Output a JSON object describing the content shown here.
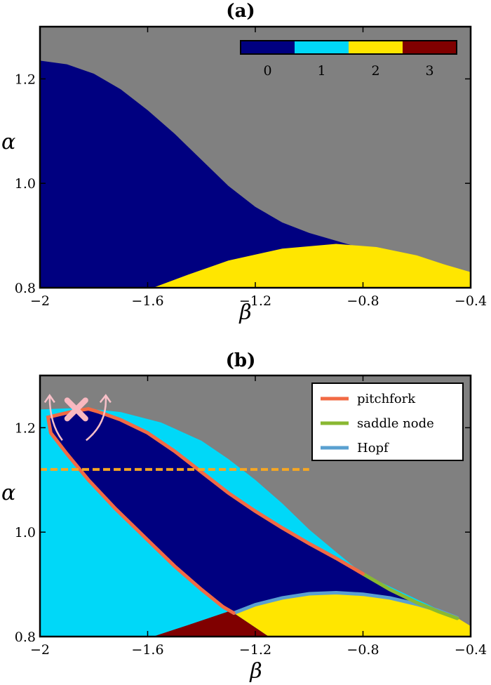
{
  "colors": {
    "gray": "#808080",
    "navy": "#000080",
    "cyan": "#00d8f8",
    "yellow": "#ffe600",
    "maroon": "#800000",
    "pitchfork": "#f26a44",
    "saddle": "#8ab832",
    "hopf": "#5aa0d0",
    "dashed": "#f5a623",
    "cross": "#f8b8c0",
    "arrow": "#f8c0c8"
  },
  "chart_data": [
    {
      "type": "heatmap",
      "title": "(a)",
      "xlabel": "β",
      "ylabel": "α",
      "xlim": [
        -2.0,
        -0.4
      ],
      "ylim": [
        0.8,
        1.3
      ],
      "xticks": [
        "−2",
        "−1.6",
        "−1.2",
        "−0.8",
        "−0.4"
      ],
      "yticks": [
        "0.8",
        "1.0",
        "1.2"
      ],
      "colorbar": {
        "location": "top-right",
        "categories": [
          "0",
          "1",
          "2",
          "3"
        ],
        "colors": [
          "#000080",
          "#00d8f8",
          "#ffe600",
          "#800000"
        ]
      },
      "regions": [
        {
          "value": 0,
          "boundary": [
            [
              -2.0,
              1.235
            ],
            [
              -1.9,
              1.228
            ],
            [
              -1.8,
              1.21
            ],
            [
              -1.7,
              1.18
            ],
            [
              -1.6,
              1.14
            ],
            [
              -1.5,
              1.095
            ],
            [
              -1.4,
              1.045
            ],
            [
              -1.3,
              0.995
            ],
            [
              -1.2,
              0.955
            ],
            [
              -1.1,
              0.925
            ],
            [
              -1.0,
              0.905
            ],
            [
              -0.9,
              0.89
            ],
            [
              -0.8,
              0.875
            ],
            [
              -0.7,
              0.86
            ],
            [
              -0.6,
              0.845
            ],
            [
              -0.5,
              0.832
            ],
            [
              -0.4,
              0.82
            ]
          ]
        },
        {
          "value": 2,
          "boundary": [
            [
              -1.58,
              0.8
            ],
            [
              -1.45,
              0.825
            ],
            [
              -1.3,
              0.852
            ],
            [
              -1.1,
              0.875
            ],
            [
              -0.9,
              0.884
            ],
            [
              -0.75,
              0.878
            ],
            [
              -0.6,
              0.862
            ],
            [
              -0.5,
              0.845
            ],
            [
              -0.4,
              0.83
            ]
          ]
        }
      ]
    },
    {
      "type": "heatmap",
      "title": "(b)",
      "xlabel": "β",
      "ylabel": "α",
      "xlim": [
        -2.0,
        -0.4
      ],
      "ylim": [
        0.8,
        1.3
      ],
      "xticks": [
        "−2",
        "−1.6",
        "−1.2",
        "−0.8",
        "−0.4"
      ],
      "yticks": [
        "0.8",
        "1.0",
        "1.2"
      ],
      "legend": {
        "location": "top-right",
        "entries": [
          "pitchfork",
          "saddle node",
          "Hopf"
        ]
      },
      "curves": [
        {
          "name": "pitchfork",
          "points": [
            [
              -1.82,
              1.236
            ],
            [
              -1.78,
              1.23
            ],
            [
              -1.7,
              1.215
            ],
            [
              -1.6,
              1.19
            ],
            [
              -1.5,
              1.155
            ],
            [
              -1.4,
              1.115
            ],
            [
              -1.3,
              1.075
            ],
            [
              -1.2,
              1.04
            ],
            [
              -1.1,
              1.008
            ],
            [
              -1.0,
              0.978
            ],
            [
              -0.9,
              0.95
            ],
            [
              -0.8,
              0.92
            ]
          ]
        },
        {
          "name": "pitchfork",
          "points": [
            [
              -1.82,
              1.236
            ],
            [
              -1.87,
              1.232
            ],
            [
              -1.93,
              1.225
            ],
            [
              -1.97,
              1.22
            ],
            [
              -1.96,
              1.19
            ],
            [
              -1.9,
              1.15
            ],
            [
              -1.82,
              1.1
            ],
            [
              -1.72,
              1.045
            ],
            [
              -1.6,
              0.985
            ],
            [
              -1.5,
              0.935
            ],
            [
              -1.4,
              0.89
            ],
            [
              -1.32,
              0.857
            ],
            [
              -1.28,
              0.845
            ]
          ]
        },
        {
          "name": "saddle node",
          "points": [
            [
              -0.8,
              0.92
            ],
            [
              -0.7,
              0.89
            ],
            [
              -0.6,
              0.865
            ],
            [
              -0.52,
              0.848
            ],
            [
              -0.45,
              0.835
            ]
          ]
        },
        {
          "name": "Hopf",
          "points": [
            [
              -1.28,
              0.845
            ],
            [
              -1.2,
              0.861
            ],
            [
              -1.1,
              0.874
            ],
            [
              -1.0,
              0.882
            ],
            [
              -0.9,
              0.884
            ],
            [
              -0.8,
              0.881
            ],
            [
              -0.7,
              0.874
            ],
            [
              -0.6,
              0.862
            ],
            [
              -0.52,
              0.85
            ],
            [
              -0.45,
              0.836
            ]
          ]
        }
      ],
      "regions": [
        {
          "value": 1,
          "boundary": [
            [
              -2.0,
              1.235
            ],
            [
              -1.85,
              1.238
            ],
            [
              -1.7,
              1.23
            ],
            [
              -1.55,
              1.21
            ],
            [
              -1.4,
              1.175
            ],
            [
              -1.3,
              1.14
            ],
            [
              -1.2,
              1.1
            ],
            [
              -1.1,
              1.055
            ],
            [
              -1.0,
              1.005
            ],
            [
              -0.9,
              0.962
            ],
            [
              -0.8,
              0.92
            ]
          ]
        },
        {
          "value": 3,
          "boundary": [
            [
              -1.58,
              0.8
            ],
            [
              -1.45,
              0.822
            ],
            [
              -1.3,
              0.848
            ],
            [
              -1.28,
              0.845
            ],
            [
              -1.15,
              0.8
            ]
          ]
        }
      ],
      "dashed_line": {
        "alpha": 1.12,
        "beta_range": [
          -2.0,
          -1.0
        ]
      },
      "marker": {
        "type": "x",
        "beta": -1.865,
        "alpha": 1.235
      }
    }
  ]
}
